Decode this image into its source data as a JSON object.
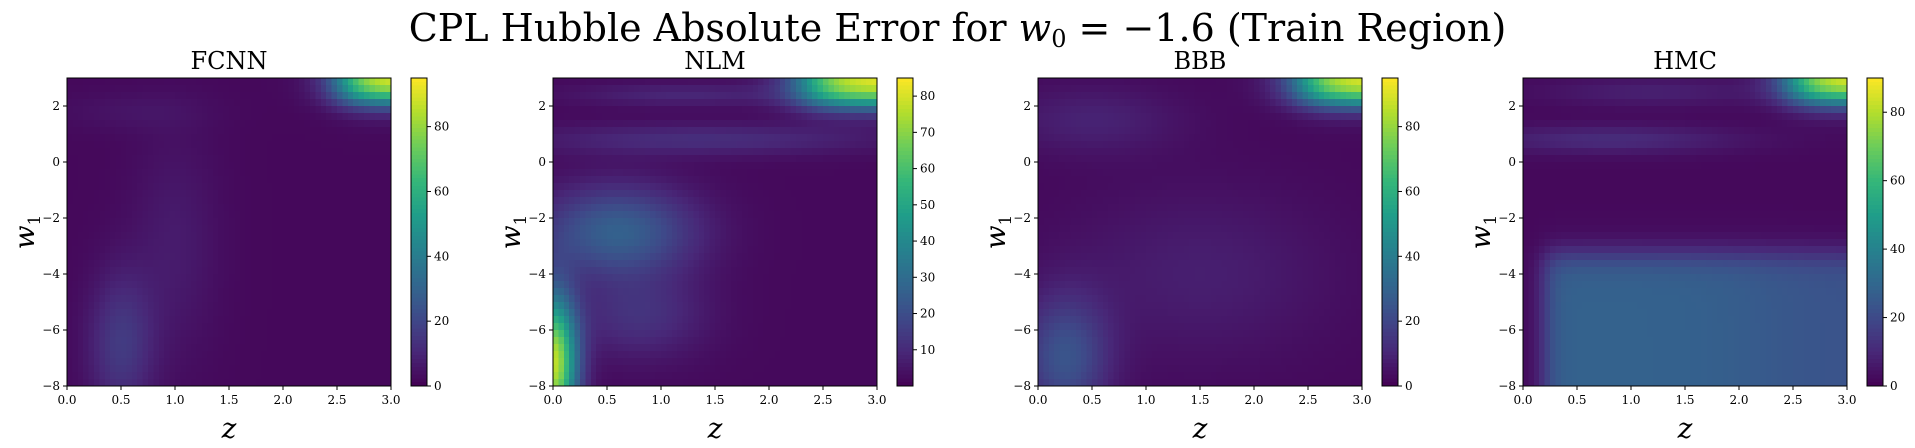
{
  "figure": {
    "title_prefix": "CPL Hubble Absolute Error for ",
    "title_var": "w",
    "title_var_sub": "0",
    "title_suffix": " = −1.6 (Train Region)"
  },
  "chart_data": [
    {
      "type": "heatmap",
      "title": "FCNN",
      "xlabel": "z",
      "ylabel": "w",
      "ylabel_sub": "1",
      "xlim": [
        0,
        3
      ],
      "ylim": [
        -8,
        3
      ],
      "xticks": [
        "0.0",
        "0.5",
        "1.0",
        "1.5",
        "2.0",
        "2.5",
        "3.0"
      ],
      "yticks": [
        "−8",
        "−6",
        "−4",
        "−2",
        "0",
        "2"
      ],
      "colorbar": {
        "min": 0,
        "max": 95,
        "ticks": [
          "0",
          "20",
          "40",
          "60",
          "80"
        ],
        "tick_values": [
          0,
          20,
          40,
          60,
          80
        ]
      },
      "description": "mostly low error; hot corner at high z, high w1 (~95); faint band near z~0.5, low w1 (~15)"
    },
    {
      "type": "heatmap",
      "title": "NLM",
      "xlabel": "z",
      "ylabel": "w",
      "ylabel_sub": "1",
      "xlim": [
        0,
        3
      ],
      "ylim": [
        -8,
        3
      ],
      "xticks": [
        "0.0",
        "0.5",
        "1.0",
        "1.5",
        "2.0",
        "2.5",
        "3.0"
      ],
      "yticks": [
        "−8",
        "−6",
        "−4",
        "−2",
        "0",
        "2"
      ],
      "colorbar": {
        "min": 0,
        "max": 85,
        "ticks": [
          "10",
          "20",
          "30",
          "40",
          "50",
          "60",
          "70",
          "80"
        ],
        "tick_values": [
          10,
          20,
          30,
          40,
          50,
          60,
          70,
          80
        ]
      },
      "description": "hot corner top-right (~85); high error at low z, low w1 (~60-80); broad moderate blob near z~0.6, w1~-2.5; curved low-error bands"
    },
    {
      "type": "heatmap",
      "title": "BBB",
      "xlabel": "z",
      "ylabel": "w",
      "ylabel_sub": "1",
      "xlim": [
        0,
        3
      ],
      "ylim": [
        -8,
        3
      ],
      "xticks": [
        "0.0",
        "0.5",
        "1.0",
        "1.5",
        "2.0",
        "2.5",
        "3.0"
      ],
      "yticks": [
        "−8",
        "−6",
        "−4",
        "−2",
        "0",
        "2"
      ],
      "colorbar": {
        "min": 0,
        "max": 95,
        "ticks": [
          "0",
          "20",
          "40",
          "60",
          "80"
        ],
        "tick_values": [
          0,
          20,
          40,
          60,
          80
        ]
      },
      "description": "mostly low error; hot corner top-right (~95); moderate error at low z, low w1 (~25)"
    },
    {
      "type": "heatmap",
      "title": "HMC",
      "xlabel": "z",
      "ylabel": "w",
      "ylabel_sub": "1",
      "xlim": [
        0,
        3
      ],
      "ylim": [
        -8,
        3
      ],
      "xticks": [
        "0.0",
        "0.5",
        "1.0",
        "1.5",
        "2.0",
        "2.5",
        "3.0"
      ],
      "yticks": [
        "−8",
        "−6",
        "−4",
        "−2",
        "0",
        "2"
      ],
      "colorbar": {
        "min": 0,
        "max": 90,
        "ticks": [
          "0",
          "20",
          "40",
          "60",
          "80"
        ],
        "tick_values": [
          0,
          20,
          40,
          60,
          80
        ]
      },
      "description": "hot corner top-right (~90); uniform moderate error (~25-30) for w1 below about -3.3; curved bands in upper region"
    }
  ]
}
